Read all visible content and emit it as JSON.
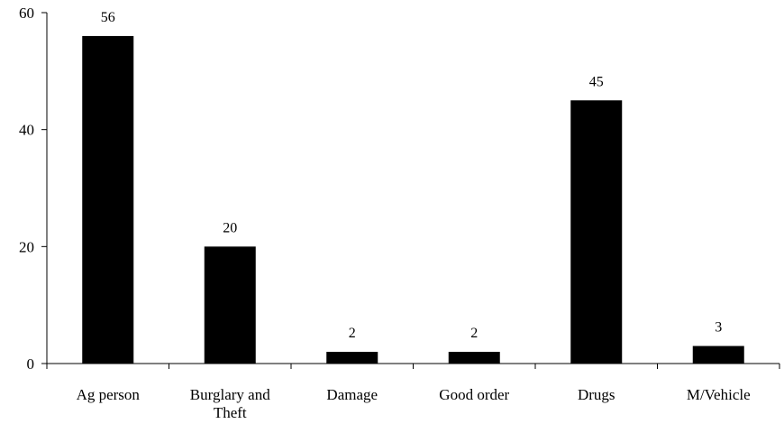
{
  "chart_data": {
    "type": "bar",
    "title": "",
    "xlabel": "",
    "ylabel": "",
    "categories": [
      "Ag person",
      "Burglary and Theft",
      "Damage",
      "Good order",
      "Drugs",
      "M/Vehicle"
    ],
    "category_lines": [
      [
        "Ag person"
      ],
      [
        "Burglary and",
        "Theft"
      ],
      [
        "Damage"
      ],
      [
        "Good order"
      ],
      [
        "Drugs"
      ],
      [
        "M/Vehicle"
      ]
    ],
    "values": [
      56,
      20,
      2,
      2,
      45,
      3
    ],
    "data_labels": [
      "56",
      "20",
      "2",
      "2",
      "45",
      "3"
    ],
    "ylim": [
      0,
      60
    ],
    "yticks": [
      0,
      20,
      40,
      60
    ],
    "ytick_labels": [
      "0",
      "20",
      "40",
      "60"
    ],
    "grid": false,
    "legend": "none",
    "bar_color": "#000000",
    "axis_color": "#000000"
  }
}
